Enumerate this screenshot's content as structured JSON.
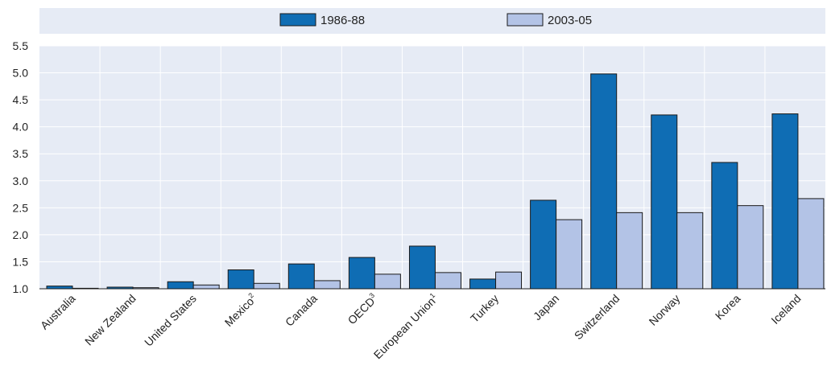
{
  "chart_data": {
    "type": "bar",
    "categories": [
      {
        "label": "Australia",
        "sup": ""
      },
      {
        "label": "New Zealand",
        "sup": ""
      },
      {
        "label": "United States",
        "sup": ""
      },
      {
        "label": "Mexico",
        "sup": "2"
      },
      {
        "label": "Canada",
        "sup": ""
      },
      {
        "label": "OECD",
        "sup": "3"
      },
      {
        "label": "European Union",
        "sup": "1"
      },
      {
        "label": "Turkey",
        "sup": ""
      },
      {
        "label": "Japan",
        "sup": ""
      },
      {
        "label": "Switzerland",
        "sup": ""
      },
      {
        "label": "Norway",
        "sup": ""
      },
      {
        "label": "Korea",
        "sup": ""
      },
      {
        "label": "Iceland",
        "sup": ""
      }
    ],
    "series": [
      {
        "name": "1986-88",
        "color": "#0f6db4",
        "values": [
          1.05,
          1.03,
          1.13,
          1.35,
          1.46,
          1.58,
          1.79,
          1.18,
          2.64,
          4.98,
          4.22,
          3.34,
          4.24
        ]
      },
      {
        "name": "2003-05",
        "color": "#b3c3e6",
        "values": [
          1.0,
          1.02,
          1.07,
          1.1,
          1.15,
          1.27,
          1.3,
          1.31,
          2.28,
          2.41,
          2.41,
          2.54,
          2.67
        ]
      }
    ],
    "ylim": [
      1.0,
      5.5
    ],
    "yticks": [
      "1.0",
      "1.5",
      "2.0",
      "2.5",
      "3.0",
      "3.5",
      "4.0",
      "4.5",
      "5.0",
      "5.5"
    ],
    "grid": true,
    "legend_position": "top-center"
  }
}
